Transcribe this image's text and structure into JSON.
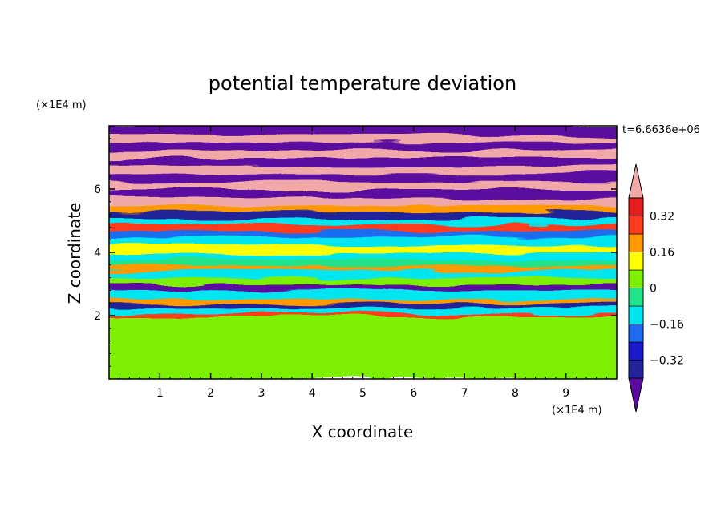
{
  "chart_data": {
    "type": "heatmap",
    "title": "potential temperature deviation",
    "xlabel": "X coordinate",
    "ylabel": "Z coordinate",
    "x_unit": "(×1E4 m)",
    "y_unit": "(×1E4 m)",
    "time_label": "t=6.6636e+06",
    "xlim": [
      0,
      10
    ],
    "ylim": [
      0,
      8
    ],
    "x_ticks": [
      1,
      2,
      3,
      4,
      5,
      6,
      7,
      8,
      9
    ],
    "y_ticks": [
      2,
      4,
      6
    ],
    "colorbar": {
      "levels": [
        -0.4,
        -0.32,
        -0.24,
        -0.16,
        -0.08,
        0,
        0.08,
        0.16,
        0.24,
        0.32,
        0.4
      ],
      "tick_labels": [
        "0.32",
        "0.16",
        "0",
        "−0.16",
        "−0.32"
      ],
      "tick_values": [
        0.32,
        0.16,
        0,
        -0.16,
        -0.32
      ],
      "colors": [
        "#5a0a9e",
        "#232399",
        "#1a1acc",
        "#1e6cf0",
        "#00e6f0",
        "#22e38a",
        "#7cf000",
        "#ffff00",
        "#ff9900",
        "#ff3c1e",
        "#e61e1e",
        "#f0a8a8"
      ]
    },
    "bands_z": [
      {
        "z0": 0.0,
        "z1": 2.0,
        "color": "#7cf000"
      },
      {
        "z0": 2.0,
        "z1": 2.1,
        "color": "#ff3c1e"
      },
      {
        "z0": 2.1,
        "z1": 2.25,
        "color": "#00e6f0"
      },
      {
        "z0": 2.25,
        "z1": 2.4,
        "color": "#232399"
      },
      {
        "z0": 2.4,
        "z1": 2.55,
        "color": "#ff9900"
      },
      {
        "z0": 2.55,
        "z1": 2.8,
        "color": "#00e6f0"
      },
      {
        "z0": 2.8,
        "z1": 3.0,
        "color": "#5a0a9e"
      },
      {
        "z0": 3.0,
        "z1": 3.2,
        "color": "#7cf000"
      },
      {
        "z0": 3.2,
        "z1": 3.45,
        "color": "#00e6f0"
      },
      {
        "z0": 3.45,
        "z1": 3.6,
        "color": "#ff9900"
      },
      {
        "z0": 3.6,
        "z1": 3.8,
        "color": "#22e38a"
      },
      {
        "z0": 3.8,
        "z1": 4.0,
        "color": "#00e6f0"
      },
      {
        "z0": 4.0,
        "z1": 4.25,
        "color": "#ffff00"
      },
      {
        "z0": 4.25,
        "z1": 4.5,
        "color": "#00e6f0"
      },
      {
        "z0": 4.5,
        "z1": 4.7,
        "color": "#1e6cf0"
      },
      {
        "z0": 4.7,
        "z1": 4.9,
        "color": "#ff3c1e"
      },
      {
        "z0": 4.9,
        "z1": 5.1,
        "color": "#00e6f0"
      },
      {
        "z0": 5.1,
        "z1": 5.3,
        "color": "#232399"
      },
      {
        "z0": 5.3,
        "z1": 5.5,
        "color": "#ff9900"
      },
      {
        "z0": 5.5,
        "z1": 5.75,
        "color": "#f0a8a8"
      },
      {
        "z0": 5.75,
        "z1": 6.0,
        "color": "#5a0a9e"
      },
      {
        "z0": 6.0,
        "z1": 6.25,
        "color": "#f0a8a8"
      },
      {
        "z0": 6.25,
        "z1": 6.5,
        "color": "#5a0a9e"
      },
      {
        "z0": 6.5,
        "z1": 6.75,
        "color": "#f0a8a8"
      },
      {
        "z0": 6.75,
        "z1": 7.0,
        "color": "#5a0a9e"
      },
      {
        "z0": 7.0,
        "z1": 7.25,
        "color": "#f0a8a8"
      },
      {
        "z0": 7.25,
        "z1": 7.5,
        "color": "#5a0a9e"
      },
      {
        "z0": 7.5,
        "z1": 7.75,
        "color": "#f0a8a8"
      },
      {
        "z0": 7.75,
        "z1": 8.0,
        "color": "#5a0a9e"
      }
    ]
  }
}
